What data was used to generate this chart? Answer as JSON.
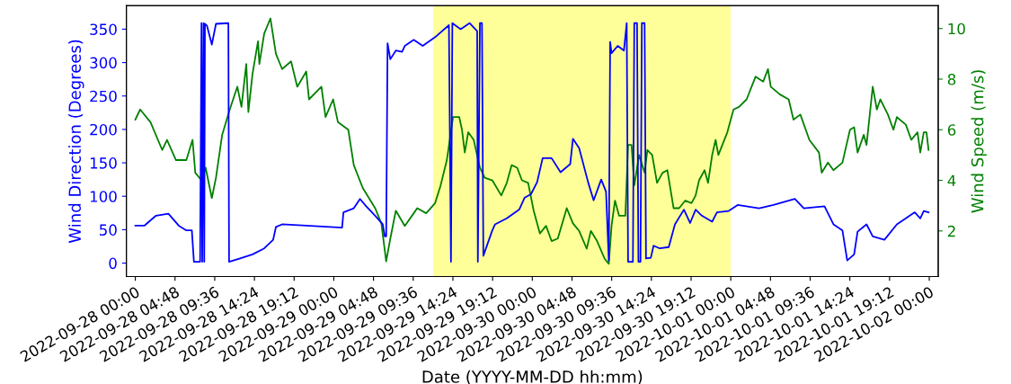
{
  "chart_data": {
    "type": "line",
    "xlabel": "Date (YYYY-MM-DD hh:mm)",
    "ylabel": "Wind Direction (Degrees)",
    "y2label": "Wind Speed (m/s)",
    "xlim": [
      "2022-09-27T22:55",
      "2022-10-02T01:05"
    ],
    "xticks": [
      {
        "value": "2022-09-28T00:00",
        "label": "2022-09-28 00:00"
      },
      {
        "value": "2022-09-28T04:48",
        "label": "2022-09-28 04:48"
      },
      {
        "value": "2022-09-28T09:36",
        "label": "2022-09-28 09:36"
      },
      {
        "value": "2022-09-28T14:24",
        "label": "2022-09-28 14:24"
      },
      {
        "value": "2022-09-28T19:12",
        "label": "2022-09-28 19:12"
      },
      {
        "value": "2022-09-29T00:00",
        "label": "2022-09-29 00:00"
      },
      {
        "value": "2022-09-29T04:48",
        "label": "2022-09-29 04:48"
      },
      {
        "value": "2022-09-29T09:36",
        "label": "2022-09-29 09:36"
      },
      {
        "value": "2022-09-29T14:24",
        "label": "2022-09-29 14:24"
      },
      {
        "value": "2022-09-29T19:12",
        "label": "2022-09-29 19:12"
      },
      {
        "value": "2022-09-30T00:00",
        "label": "2022-09-30 00:00"
      },
      {
        "value": "2022-09-30T04:48",
        "label": "2022-09-30 04:48"
      },
      {
        "value": "2022-09-30T09:36",
        "label": "2022-09-30 09:36"
      },
      {
        "value": "2022-09-30T14:24",
        "label": "2022-09-30 14:24"
      },
      {
        "value": "2022-09-30T19:12",
        "label": "2022-09-30 19:12"
      },
      {
        "value": "2022-10-01T00:00",
        "label": "2022-10-01 00:00"
      },
      {
        "value": "2022-10-01T04:48",
        "label": "2022-10-01 04:48"
      },
      {
        "value": "2022-10-01T09:36",
        "label": "2022-10-01 09:36"
      },
      {
        "value": "2022-10-01T14:24",
        "label": "2022-10-01 14:24"
      },
      {
        "value": "2022-10-01T19:12",
        "label": "2022-10-01 19:12"
      },
      {
        "value": "2022-10-02T00:00",
        "label": "2022-10-02 00:00"
      }
    ],
    "ylim": [
      -20,
      385
    ],
    "yticks": [
      0,
      50,
      100,
      150,
      200,
      250,
      300,
      350
    ],
    "y2lim": [
      0.2,
      10.9
    ],
    "y2ticks": [
      2,
      4,
      6,
      8,
      10
    ],
    "bands": [
      {
        "axis": "x",
        "from": "2022-09-29T12:00",
        "to": "2022-10-01T00:00",
        "color": "#ffff99"
      }
    ],
    "series": [
      {
        "color": "#0000ff",
        "x": [
          "2022-09-28T00:00",
          "2022-09-28T01:05",
          "2022-09-28T02:30",
          "2022-09-28T04:00",
          "2022-09-28T05:15",
          "2022-09-28T06:10",
          "2022-09-28T06:50",
          "2022-09-28T07:05",
          "2022-09-28T07:50",
          "2022-09-28T08:00",
          "2022-09-28T08:05",
          "2022-09-28T08:15",
          "2022-09-28T08:20",
          "2022-09-28T08:25",
          "2022-09-28T08:40",
          "2022-09-28T09:15",
          "2022-09-28T09:45",
          "2022-09-28T11:15",
          "2022-09-28T11:20",
          "2022-09-28T12:40",
          "2022-09-28T14:10",
          "2022-09-28T15:35",
          "2022-09-28T16:40",
          "2022-09-28T17:00",
          "2022-09-28T17:45",
          "2022-09-28T20:40",
          "2022-09-29T01:00",
          "2022-09-29T01:10",
          "2022-09-29T02:25",
          "2022-09-29T03:10",
          "2022-09-29T03:55",
          "2022-09-29T05:00",
          "2022-09-29T05:55",
          "2022-09-29T06:10",
          "2022-09-29T06:20",
          "2022-09-29T06:30",
          "2022-09-29T06:50",
          "2022-09-29T07:30",
          "2022-09-29T08:15",
          "2022-09-29T08:35",
          "2022-09-29T09:40",
          "2022-09-29T10:45",
          "2022-09-29T12:15",
          "2022-09-29T13:55",
          "2022-09-29T14:10",
          "2022-09-29T14:20",
          "2022-09-29T15:20",
          "2022-09-29T16:25",
          "2022-09-29T17:20",
          "2022-09-29T17:25",
          "2022-09-29T17:40",
          "2022-09-29T17:55",
          "2022-09-29T18:05",
          "2022-09-29T19:10",
          "2022-09-29T19:30",
          "2022-09-29T20:55",
          "2022-09-29T22:25",
          "2022-09-29T23:05",
          "2022-09-29T23:50",
          "2022-09-30T00:35",
          "2022-09-30T01:15",
          "2022-09-30T02:20",
          "2022-09-30T03:25",
          "2022-09-30T04:35",
          "2022-09-30T04:55",
          "2022-09-30T05:40",
          "2022-09-30T06:45",
          "2022-09-30T07:25",
          "2022-09-30T08:20",
          "2022-09-30T08:55",
          "2022-09-30T09:15",
          "2022-09-30T09:25",
          "2022-09-30T09:35",
          "2022-09-30T10:20",
          "2022-09-30T11:05",
          "2022-09-30T11:25",
          "2022-09-30T11:35",
          "2022-09-30T12:10",
          "2022-09-30T12:20",
          "2022-09-30T12:40",
          "2022-09-30T12:50",
          "2022-09-30T13:05",
          "2022-09-30T13:15",
          "2022-09-30T13:35",
          "2022-09-30T13:45",
          "2022-09-30T14:20",
          "2022-09-30T14:40",
          "2022-09-30T15:25",
          "2022-09-30T16:30",
          "2022-09-30T17:15",
          "2022-09-30T18:20",
          "2022-09-30T19:05",
          "2022-09-30T19:45",
          "2022-09-30T20:30",
          "2022-09-30T21:45",
          "2022-09-30T22:20",
          "2022-09-30T23:45",
          "2022-10-01T00:50",
          "2022-10-01T03:25",
          "2022-10-01T05:10",
          "2022-10-01T07:45",
          "2022-10-01T08:50",
          "2022-10-01T11:20",
          "2022-10-01T12:25",
          "2022-10-01T13:30",
          "2022-10-01T14:05",
          "2022-10-01T14:55",
          "2022-10-01T15:20",
          "2022-10-01T16:25",
          "2022-10-01T17:10",
          "2022-10-01T18:35",
          "2022-10-01T20:05",
          "2022-10-01T21:10",
          "2022-10-01T22:15",
          "2022-10-01T22:55",
          "2022-10-01T23:20",
          "2022-10-01T23:55"
        ],
        "values": [
          56,
          56,
          71,
          74,
          56,
          49,
          49,
          2,
          2,
          359,
          2,
          359,
          2,
          358,
          355,
          327,
          358,
          359,
          2,
          7,
          13,
          22,
          35,
          54,
          58,
          56,
          53,
          76,
          82,
          96,
          85,
          71,
          58,
          40,
          40,
          329,
          305,
          318,
          316,
          325,
          334,
          325,
          338,
          356,
          2,
          359,
          350,
          359,
          347,
          2,
          359,
          359,
          11,
          49,
          58,
          67,
          80,
          98,
          103,
          121,
          157,
          157,
          136,
          148,
          186,
          172,
          121,
          94,
          125,
          107,
          4,
          331,
          314,
          325,
          318,
          359,
          2,
          2,
          359,
          359,
          2,
          2,
          359,
          359,
          7,
          8,
          26,
          22,
          24,
          58,
          80,
          60,
          80,
          71,
          62,
          76,
          78,
          87,
          82,
          87,
          96,
          82,
          85,
          58,
          49,
          4,
          13,
          47,
          58,
          40,
          35,
          58,
          67,
          76,
          67,
          78,
          76
        ]
      },
      {
        "color": "#008000",
        "axis": "y2",
        "x": [
          "2022-09-28T00:00",
          "2022-09-28T00:35",
          "2022-09-28T01:50",
          "2022-09-28T03:15",
          "2022-09-28T03:50",
          "2022-09-28T04:55",
          "2022-09-28T06:10",
          "2022-09-28T06:55",
          "2022-09-28T07:15",
          "2022-09-28T08:00",
          "2022-09-28T08:30",
          "2022-09-28T09:15",
          "2022-09-28T09:45",
          "2022-09-28T10:30",
          "2022-09-28T11:25",
          "2022-09-28T12:20",
          "2022-09-28T12:50",
          "2022-09-28T13:25",
          "2022-09-28T13:40",
          "2022-09-28T14:10",
          "2022-09-28T14:50",
          "2022-09-28T15:00",
          "2022-09-28T15:35",
          "2022-09-28T16:20",
          "2022-09-28T17:00",
          "2022-09-28T17:45",
          "2022-09-28T18:50",
          "2022-09-28T19:35",
          "2022-09-28T20:40",
          "2022-09-28T21:00",
          "2022-09-28T22:30",
          "2022-09-28T23:00",
          "2022-09-28T23:55",
          "2022-09-29T00:30",
          "2022-09-29T01:45",
          "2022-09-29T02:25",
          "2022-09-29T03:30",
          "2022-09-29T04:15",
          "2022-09-29T05:00",
          "2022-09-29T05:45",
          "2022-09-29T06:20",
          "2022-09-29T06:50",
          "2022-09-29T07:30",
          "2022-09-29T08:35",
          "2022-09-29T09:40",
          "2022-09-29T10:05",
          "2022-09-29T11:10",
          "2022-09-29T12:15",
          "2022-09-29T12:55",
          "2022-09-29T13:40",
          "2022-09-29T14:25",
          "2022-09-29T15:10",
          "2022-09-29T15:30",
          "2022-09-29T15:50",
          "2022-09-29T16:15",
          "2022-09-29T16:55",
          "2022-09-29T17:40",
          "2022-09-29T18:15",
          "2022-09-29T19:10",
          "2022-09-29T20:15",
          "2022-09-29T20:55",
          "2022-09-29T21:30",
          "2022-09-29T22:10",
          "2022-09-29T22:45",
          "2022-09-29T23:30",
          "2022-09-30T00:10",
          "2022-09-30T00:55",
          "2022-09-30T01:40",
          "2022-09-30T02:20",
          "2022-09-30T03:05",
          "2022-09-30T04:10",
          "2022-09-30T04:55",
          "2022-09-30T05:40",
          "2022-09-30T06:35",
          "2022-09-30T07:05",
          "2022-09-30T07:50",
          "2022-09-30T08:45",
          "2022-09-30T09:15",
          "2022-09-30T09:35",
          "2022-09-30T10:00",
          "2022-09-30T10:30",
          "2022-09-30T11:15",
          "2022-09-30T11:35",
          "2022-09-30T12:00",
          "2022-09-30T12:20",
          "2022-09-30T12:55",
          "2022-09-30T13:35",
          "2022-09-30T13:55",
          "2022-09-30T14:30",
          "2022-09-30T15:05",
          "2022-09-30T15:45",
          "2022-09-30T16:20",
          "2022-09-30T17:05",
          "2022-09-30T17:45",
          "2022-09-30T18:30",
          "2022-09-30T19:15",
          "2022-09-30T19:45",
          "2022-09-30T20:10",
          "2022-09-30T20:50",
          "2022-09-30T21:15",
          "2022-09-30T21:45",
          "2022-09-30T22:10",
          "2022-09-30T22:30",
          "2022-09-30T23:35",
          "2022-10-01T00:20",
          "2022-10-01T01:00",
          "2022-10-01T01:55",
          "2022-10-01T03:00",
          "2022-10-01T03:55",
          "2022-10-01T04:30",
          "2022-10-01T04:50",
          "2022-10-01T05:55",
          "2022-10-01T07:00",
          "2022-10-01T07:35",
          "2022-10-01T08:25",
          "2022-10-01T09:30",
          "2022-10-01T10:40",
          "2022-10-01T11:00",
          "2022-10-01T11:45",
          "2022-10-01T12:25",
          "2022-10-01T13:30",
          "2022-10-01T14:25",
          "2022-10-01T14:55",
          "2022-10-01T15:20",
          "2022-10-01T16:05",
          "2022-10-01T16:25",
          "2022-10-01T17:10",
          "2022-10-01T17:40",
          "2022-10-01T18:05",
          "2022-10-01T19:00",
          "2022-10-01T19:40",
          "2022-10-01T20:05",
          "2022-10-01T21:10",
          "2022-10-01T21:50",
          "2022-10-01T22:35",
          "2022-10-01T22:55",
          "2022-10-01T23:20",
          "2022-10-01T23:40",
          "2022-10-01T23:55"
        ],
        "values": [
          6.4,
          6.8,
          6.3,
          5.2,
          5.6,
          4.8,
          4.8,
          5.6,
          4.3,
          4.0,
          4.5,
          3.3,
          4.1,
          5.8,
          6.8,
          7.7,
          6.9,
          8.6,
          6.7,
          8.2,
          9.5,
          8.6,
          9.8,
          10.4,
          9.0,
          8.4,
          8.7,
          7.7,
          8.3,
          7.2,
          7.7,
          6.5,
          7.2,
          6.3,
          6.0,
          4.6,
          3.7,
          3.3,
          2.9,
          2.3,
          0.8,
          1.7,
          2.8,
          2.2,
          2.7,
          2.9,
          2.7,
          3.1,
          3.8,
          4.8,
          6.5,
          6.5,
          6.0,
          5.1,
          5.9,
          5.6,
          4.5,
          4.1,
          4.0,
          3.4,
          3.9,
          4.6,
          4.5,
          4.0,
          3.9,
          2.8,
          1.9,
          2.2,
          1.6,
          1.7,
          2.9,
          2.3,
          2.0,
          1.3,
          2.0,
          1.6,
          0.9,
          0.7,
          2.2,
          3.2,
          2.6,
          2.6,
          5.4,
          5.4,
          3.8,
          5.0,
          4.3,
          5.2,
          5.0,
          3.9,
          4.3,
          4.4,
          2.9,
          2.9,
          3.2,
          3.1,
          3.4,
          4.0,
          4.4,
          3.9,
          5.0,
          5.6,
          5.0,
          5.9,
          6.8,
          6.9,
          7.2,
          8.1,
          7.9,
          8.4,
          7.7,
          7.4,
          7.2,
          6.4,
          6.6,
          5.6,
          5.1,
          4.3,
          4.7,
          4.4,
          4.7,
          6.0,
          6.1,
          5.1,
          5.8,
          5.4,
          7.7,
          6.8,
          7.2,
          6.6,
          6.0,
          6.5,
          6.2,
          5.6,
          5.9,
          5.1,
          5.9,
          5.9,
          5.2
        ]
      }
    ]
  }
}
